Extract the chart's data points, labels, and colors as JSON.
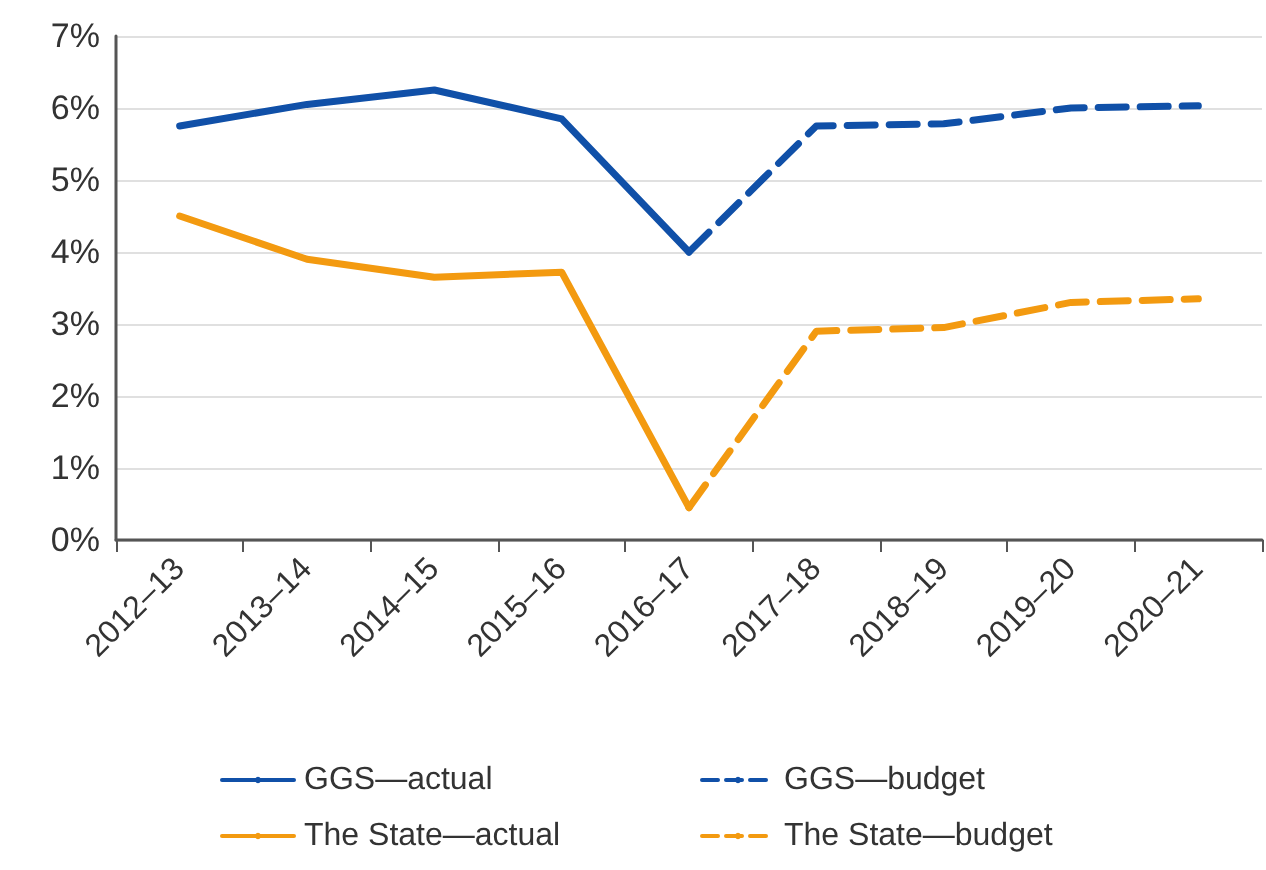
{
  "chart_data": {
    "type": "line",
    "categories": [
      "2012–13",
      "2013–14",
      "2014–15",
      "2015–16",
      "2016–17",
      "2017–18",
      "2018–19",
      "2019–20",
      "2020–21"
    ],
    "series": [
      {
        "name": "GGS—actual",
        "color": "#1050a8",
        "line_style": "solid",
        "values": [
          5.75,
          6.05,
          6.25,
          5.85,
          4.0,
          null,
          null,
          null,
          null
        ]
      },
      {
        "name": "GGS—budget",
        "color": "#1050a8",
        "line_style": "dashed",
        "values": [
          null,
          null,
          null,
          null,
          4.0,
          5.75,
          5.78,
          6.0,
          6.03
        ]
      },
      {
        "name": "The State—actual",
        "color": "#f39a10",
        "line_style": "solid",
        "values": [
          4.5,
          3.9,
          3.65,
          3.72,
          0.45,
          null,
          null,
          null,
          null
        ]
      },
      {
        "name": "The State—budget",
        "color": "#f39a10",
        "line_style": "dashed",
        "values": [
          null,
          null,
          null,
          null,
          0.45,
          2.9,
          2.95,
          3.3,
          3.35
        ]
      }
    ],
    "ylim": [
      0,
      7
    ],
    "yticks": [
      {
        "value": 0,
        "label": "0%"
      },
      {
        "value": 1,
        "label": "1%"
      },
      {
        "value": 2,
        "label": "2%"
      },
      {
        "value": 3,
        "label": "3%"
      },
      {
        "value": 4,
        "label": "4%"
      },
      {
        "value": 5,
        "label": "5%"
      },
      {
        "value": 6,
        "label": "6%"
      },
      {
        "value": 7,
        "label": "7%"
      }
    ],
    "grid": "y",
    "legend": "bottom",
    "marker": "none"
  }
}
